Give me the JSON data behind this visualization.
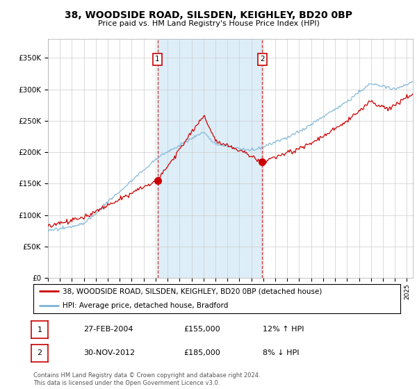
{
  "title": "38, WOODSIDE ROAD, SILSDEN, KEIGHLEY, BD20 0BP",
  "subtitle": "Price paid vs. HM Land Registry's House Price Index (HPI)",
  "legend_line1": "38, WOODSIDE ROAD, SILSDEN, KEIGHLEY, BD20 0BP (detached house)",
  "legend_line2": "HPI: Average price, detached house, Bradford",
  "annotation1_date": "27-FEB-2004",
  "annotation1_price": "£155,000",
  "annotation1_hpi": "12% ↑ HPI",
  "annotation2_date": "30-NOV-2012",
  "annotation2_price": "£185,000",
  "annotation2_hpi": "8% ↓ HPI",
  "footer": "Contains HM Land Registry data © Crown copyright and database right 2024.\nThis data is licensed under the Open Government Licence v3.0.",
  "sale1_year": 2004.15,
  "sale1_price": 155000,
  "sale2_year": 2012.92,
  "sale2_price": 185000,
  "hpi_color": "#7ab3d4",
  "price_color": "#cc0000",
  "bg_shaded_color": "#ddeef8",
  "ylim_min": 0,
  "ylim_max": 380000,
  "xlim_min": 1995,
  "xlim_max": 2025.5
}
